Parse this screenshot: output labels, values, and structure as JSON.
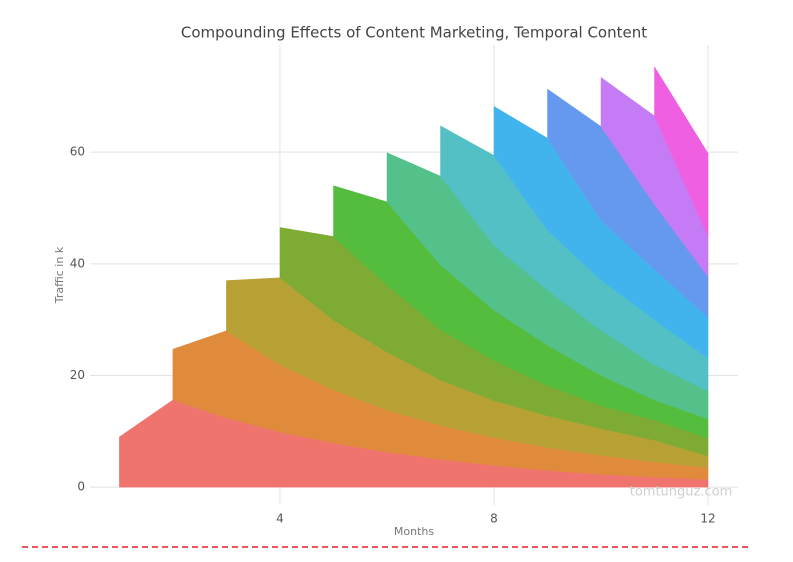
{
  "chart_data": {
    "type": "stacked-area",
    "title": "Compounding Effects of Content Marketing, Temporal Content",
    "xlabel": "Months",
    "ylabel": "Traffic in k",
    "watermark": "tomtunguz.com",
    "x": [
      1,
      2,
      3,
      4,
      5,
      6,
      7,
      8,
      9,
      10,
      11,
      12
    ],
    "xlim": [
      0.45,
      12.56
    ],
    "ylim": [
      -3.2,
      79.2
    ],
    "xticks": [
      4,
      8,
      12
    ],
    "yticks": [
      0,
      20,
      40,
      60
    ],
    "grid": true,
    "series": [
      {
        "color": "#f0746e",
        "values": [
          9.0,
          15.6,
          12.4,
          9.9,
          7.9,
          6.3,
          5.0,
          3.9,
          3.0,
          2.3,
          1.8,
          1.4
        ]
      },
      {
        "color": "#e08a3c",
        "values": [
          null,
          9.1,
          15.6,
          12.0,
          9.5,
          7.5,
          6.1,
          5.0,
          4.1,
          3.4,
          2.7,
          2.1
        ]
      },
      {
        "color": "#b8a134",
        "values": [
          null,
          null,
          9.0,
          15.6,
          12.5,
          10.4,
          8.1,
          6.6,
          5.7,
          4.8,
          3.9,
          2.1
        ]
      },
      {
        "color": "#7dab33",
        "values": [
          null,
          null,
          null,
          9.0,
          15.0,
          12.0,
          9.0,
          7.2,
          5.4,
          4.1,
          3.6,
          3.2
        ]
      },
      {
        "color": "#54bd3d",
        "values": [
          null,
          null,
          null,
          null,
          9.1,
          14.9,
          11.6,
          9.0,
          7.2,
          5.4,
          3.6,
          3.4
        ]
      },
      {
        "color": "#54c08a",
        "values": [
          null,
          null,
          null,
          null,
          null,
          8.8,
          15.9,
          11.6,
          9.9,
          8.1,
          6.3,
          5.0
        ]
      },
      {
        "color": "#52c0c4",
        "values": [
          null,
          null,
          null,
          null,
          null,
          null,
          9.0,
          16.1,
          10.7,
          9.0,
          8.1,
          5.9
        ]
      },
      {
        "color": "#41b4ee",
        "values": [
          null,
          null,
          null,
          null,
          null,
          null,
          null,
          8.8,
          16.5,
          10.7,
          9.0,
          7.3
        ]
      },
      {
        "color": "#6599f0",
        "values": [
          null,
          null,
          null,
          null,
          null,
          null,
          null,
          null,
          8.8,
          16.8,
          11.6,
          7.3
        ]
      },
      {
        "color": "#c57bf6",
        "values": [
          null,
          null,
          null,
          null,
          null,
          null,
          null,
          null,
          null,
          8.8,
          15.9,
          7.2
        ]
      },
      {
        "color": "#ef5fe2",
        "values": [
          null,
          null,
          null,
          null,
          null,
          null,
          null,
          null,
          null,
          null,
          8.8,
          14.9
        ]
      }
    ]
  }
}
